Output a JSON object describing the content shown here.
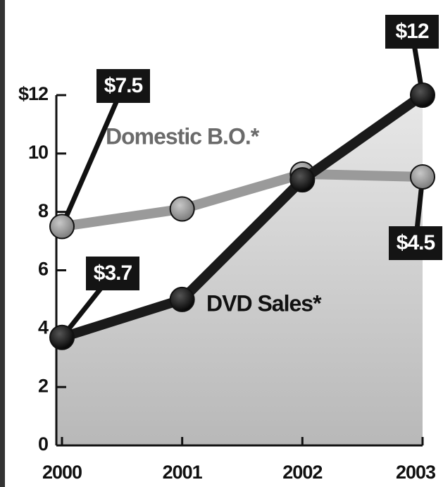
{
  "chart_data": {
    "type": "line",
    "categories": [
      "2000",
      "2001",
      "2002",
      "2003"
    ],
    "series": [
      {
        "name": "Domestic B.O.*",
        "color": "#9a9a9a",
        "values": [
          7.5,
          8.1,
          9.3,
          9.2
        ]
      },
      {
        "name": "DVD Sales*",
        "color": "#1a1a1a",
        "values": [
          3.7,
          5.0,
          9.1,
          12
        ]
      }
    ],
    "ylim": [
      0,
      12
    ],
    "yticks": [
      0,
      2,
      4,
      6,
      8,
      10,
      {
        "value": 12,
        "label": "$12"
      }
    ],
    "annotations": [
      {
        "text": "$7.5"
      },
      {
        "text": "$3.7"
      },
      {
        "text": "$12"
      },
      {
        "text": "$4.5"
      }
    ]
  }
}
